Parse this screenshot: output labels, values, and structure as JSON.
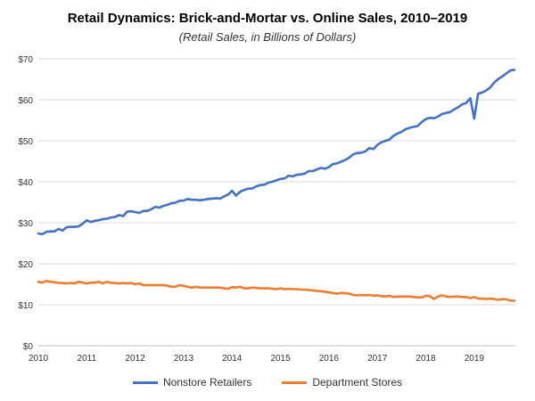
{
  "chart_data": {
    "type": "line",
    "title": "Retail Dynamics: Brick-and-Mortar  vs. Online Sales, 2010–2019",
    "subtitle": "(Retail Sales, in Billions of Dollars)",
    "xlabel": "",
    "ylabel": "",
    "x_tick_labels": [
      "2010",
      "2011",
      "2012",
      "2013",
      "2014",
      "2015",
      "2016",
      "2017",
      "2018",
      "2019"
    ],
    "y_tick_labels": [
      "$0",
      "$10",
      "$20",
      "$30",
      "$40",
      "$50",
      "$60",
      "$70"
    ],
    "xlim": [
      2010,
      2019.85
    ],
    "ylim": [
      0,
      70
    ],
    "grid": true,
    "legend_position": "bottom",
    "series": [
      {
        "name": "Nonstore Retailers",
        "color": "#4472C4",
        "x": [
          2010.0,
          2010.08,
          2010.17,
          2010.25,
          2010.33,
          2010.42,
          2010.5,
          2010.58,
          2010.67,
          2010.75,
          2010.83,
          2010.92,
          2011.0,
          2011.08,
          2011.17,
          2011.25,
          2011.33,
          2011.42,
          2011.5,
          2011.58,
          2011.67,
          2011.75,
          2011.83,
          2011.92,
          2012.0,
          2012.08,
          2012.17,
          2012.25,
          2012.33,
          2012.42,
          2012.5,
          2012.58,
          2012.67,
          2012.75,
          2012.83,
          2012.92,
          2013.0,
          2013.08,
          2013.17,
          2013.25,
          2013.33,
          2013.42,
          2013.5,
          2013.58,
          2013.67,
          2013.75,
          2013.83,
          2013.92,
          2014.0,
          2014.08,
          2014.17,
          2014.25,
          2014.33,
          2014.42,
          2014.5,
          2014.58,
          2014.67,
          2014.75,
          2014.83,
          2014.92,
          2015.0,
          2015.08,
          2015.17,
          2015.25,
          2015.33,
          2015.42,
          2015.5,
          2015.58,
          2015.67,
          2015.75,
          2015.83,
          2015.92,
          2016.0,
          2016.08,
          2016.17,
          2016.25,
          2016.33,
          2016.42,
          2016.5,
          2016.58,
          2016.67,
          2016.75,
          2016.83,
          2016.92,
          2017.0,
          2017.08,
          2017.17,
          2017.25,
          2017.33,
          2017.42,
          2017.5,
          2017.58,
          2017.67,
          2017.75,
          2017.83,
          2017.92,
          2018.0,
          2018.08,
          2018.17,
          2018.25,
          2018.33,
          2018.42,
          2018.5,
          2018.58,
          2018.67,
          2018.75,
          2018.83,
          2018.92,
          2019.0,
          2019.08,
          2019.17,
          2019.25,
          2019.33,
          2019.42,
          2019.5,
          2019.58,
          2019.67,
          2019.75,
          2019.83
        ],
        "values": [
          27.4,
          27.2,
          27.8,
          27.9,
          27.9,
          28.5,
          28.1,
          28.9,
          29.0,
          29.0,
          29.1,
          29.8,
          30.6,
          30.2,
          30.5,
          30.6,
          30.9,
          31.0,
          31.3,
          31.4,
          31.9,
          31.6,
          32.7,
          32.8,
          32.6,
          32.4,
          32.9,
          32.9,
          33.3,
          33.9,
          33.7,
          34.1,
          34.4,
          34.8,
          34.9,
          35.4,
          35.4,
          35.8,
          35.6,
          35.6,
          35.5,
          35.6,
          35.8,
          35.9,
          36.0,
          35.9,
          36.4,
          36.9,
          37.8,
          36.6,
          37.6,
          38.0,
          38.3,
          38.4,
          38.9,
          39.2,
          39.3,
          39.8,
          40.0,
          40.4,
          40.7,
          40.8,
          41.5,
          41.3,
          41.7,
          41.8,
          42.0,
          42.6,
          42.6,
          43.0,
          43.4,
          43.2,
          43.6,
          44.3,
          44.5,
          44.9,
          45.3,
          45.9,
          46.7,
          47.0,
          47.1,
          47.4,
          48.2,
          48.0,
          49.0,
          49.6,
          50.0,
          50.3,
          51.2,
          51.8,
          52.2,
          52.8,
          53.2,
          53.4,
          53.6,
          54.6,
          55.3,
          55.6,
          55.5,
          55.9,
          56.5,
          56.8,
          57.0,
          57.6,
          58.2,
          58.9,
          59.2,
          60.4,
          55.4,
          61.5,
          61.8,
          62.3,
          63.0,
          64.3,
          65.1,
          65.7,
          66.5,
          67.2,
          67.3
        ]
      },
      {
        "name": "Department Stores",
        "color": "#ED7D31",
        "x": [
          2010.0,
          2010.08,
          2010.17,
          2010.25,
          2010.33,
          2010.42,
          2010.5,
          2010.58,
          2010.67,
          2010.75,
          2010.83,
          2010.92,
          2011.0,
          2011.08,
          2011.17,
          2011.25,
          2011.33,
          2011.42,
          2011.5,
          2011.58,
          2011.67,
          2011.75,
          2011.83,
          2011.92,
          2012.0,
          2012.08,
          2012.17,
          2012.25,
          2012.33,
          2012.42,
          2012.5,
          2012.58,
          2012.67,
          2012.75,
          2012.83,
          2012.92,
          2013.0,
          2013.08,
          2013.17,
          2013.25,
          2013.33,
          2013.42,
          2013.5,
          2013.58,
          2013.67,
          2013.75,
          2013.83,
          2013.92,
          2014.0,
          2014.08,
          2014.17,
          2014.25,
          2014.33,
          2014.42,
          2014.5,
          2014.58,
          2014.67,
          2014.75,
          2014.83,
          2014.92,
          2015.0,
          2015.08,
          2015.17,
          2015.25,
          2015.33,
          2015.42,
          2015.5,
          2015.58,
          2015.67,
          2015.75,
          2015.83,
          2015.92,
          2016.0,
          2016.08,
          2016.17,
          2016.25,
          2016.33,
          2016.42,
          2016.5,
          2016.58,
          2016.67,
          2016.75,
          2016.83,
          2016.92,
          2017.0,
          2017.08,
          2017.17,
          2017.25,
          2017.33,
          2017.42,
          2017.5,
          2017.58,
          2017.67,
          2017.75,
          2017.83,
          2017.92,
          2018.0,
          2018.08,
          2018.17,
          2018.25,
          2018.33,
          2018.42,
          2018.5,
          2018.58,
          2018.67,
          2018.75,
          2018.83,
          2018.92,
          2019.0,
          2019.08,
          2019.17,
          2019.25,
          2019.33,
          2019.42,
          2019.5,
          2019.58,
          2019.67,
          2019.75,
          2019.83
        ],
        "values": [
          15.6,
          15.4,
          15.8,
          15.6,
          15.5,
          15.3,
          15.3,
          15.2,
          15.3,
          15.2,
          15.6,
          15.4,
          15.2,
          15.4,
          15.4,
          15.6,
          15.2,
          15.6,
          15.3,
          15.3,
          15.2,
          15.3,
          15.2,
          15.3,
          15.0,
          15.2,
          14.8,
          14.8,
          14.8,
          14.8,
          14.8,
          14.8,
          14.6,
          14.4,
          14.4,
          14.8,
          14.6,
          14.4,
          14.2,
          14.4,
          14.2,
          14.2,
          14.2,
          14.2,
          14.2,
          14.2,
          14.0,
          13.9,
          14.3,
          14.2,
          14.4,
          14.0,
          14.0,
          14.2,
          14.1,
          14.0,
          14.0,
          14.0,
          13.9,
          13.8,
          14.0,
          13.8,
          13.9,
          13.8,
          13.8,
          13.7,
          13.7,
          13.6,
          13.5,
          13.4,
          13.3,
          13.2,
          13.0,
          12.9,
          12.7,
          12.9,
          12.8,
          12.7,
          12.4,
          12.3,
          12.4,
          12.3,
          12.4,
          12.2,
          12.3,
          12.1,
          12.0,
          12.2,
          11.9,
          12.0,
          12.0,
          12.0,
          12.0,
          11.9,
          11.8,
          11.8,
          12.2,
          12.1,
          11.4,
          12.0,
          12.3,
          12.0,
          11.9,
          12.0,
          12.0,
          11.9,
          11.9,
          11.6,
          11.9,
          11.5,
          11.5,
          11.4,
          11.5,
          11.4,
          11.2,
          11.4,
          11.3,
          11.0,
          11.0
        ]
      }
    ]
  }
}
